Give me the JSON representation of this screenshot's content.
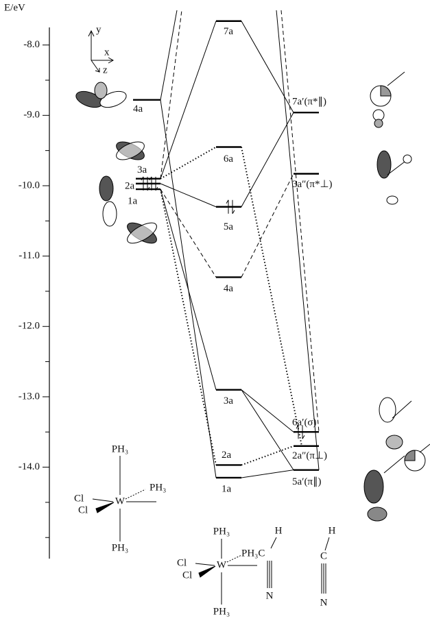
{
  "axis": {
    "label": "E/eV",
    "range": [
      -7.75,
      -15.3
    ],
    "ticks": [
      {
        "value": -8,
        "label": "-8.0"
      },
      {
        "value": -9,
        "label": "-9.0"
      },
      {
        "value": -10,
        "label": "-10.0"
      },
      {
        "value": -11,
        "label": "-11.0"
      },
      {
        "value": -12,
        "label": "-12.0"
      },
      {
        "value": -13,
        "label": "-13.0"
      },
      {
        "value": -14,
        "label": "-14.0"
      }
    ],
    "minor_ticks": [
      -8.5,
      -9.5,
      -10.5,
      -11.5,
      -12.5,
      -13.5,
      -14.5,
      -15
    ]
  },
  "coordinate_axes": {
    "y": "y",
    "x": "x",
    "z": "z"
  },
  "levels": {
    "left": [
      {
        "label": "4a",
        "energy": -8.78
      },
      {
        "label": "3a",
        "energy": -9.9
      },
      {
        "label": "2a",
        "energy": -9.97
      },
      {
        "label": "1a",
        "energy": -10.05
      }
    ],
    "center": [
      {
        "label": "7a",
        "energy": -7.66
      },
      {
        "label": "6a",
        "energy": -9.45
      },
      {
        "label": "5a",
        "energy": -10.3
      },
      {
        "label": "4a",
        "energy": -11.3
      },
      {
        "label": "3a",
        "energy": -12.9
      },
      {
        "label": "2a",
        "energy": -13.97
      },
      {
        "label": "1a",
        "energy": -14.15
      }
    ],
    "right": [
      {
        "label": "7a′(π*∥)",
        "energy": -8.96
      },
      {
        "label": "3a″(π*⊥)",
        "energy": -9.83
      },
      {
        "label": "6a′(σ)",
        "energy": -13.5
      },
      {
        "label": "2a″(π⊥)",
        "energy": -13.7
      },
      {
        "label": "5a′(π∥)",
        "energy": -14.04
      }
    ]
  },
  "molecules": {
    "left": {
      "top": "PH₃",
      "right": "PH₃",
      "cl1": "Cl",
      "cl2": "Cl",
      "metal": "W",
      "bottom": "PH₃"
    },
    "complex": {
      "top": "PH₃",
      "metal": "W",
      "cl1": "Cl",
      "cl2": "Cl",
      "bottom": "PH₃",
      "ligand": "PH₃C",
      "h": "H",
      "n": "N"
    },
    "free": {
      "c": "C",
      "h": "H",
      "n": "N"
    }
  }
}
